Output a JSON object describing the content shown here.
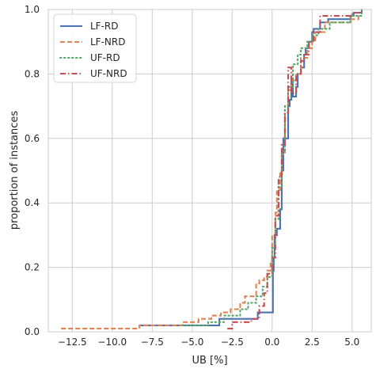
{
  "chart_data": {
    "type": "line",
    "title": "",
    "xlabel": "UB [%]",
    "ylabel": "proportion of instances",
    "xlim": [
      -14.0,
      6.2
    ],
    "ylim": [
      0.0,
      1.0
    ],
    "x_ticks": [
      -12.5,
      -10.0,
      -7.5,
      -5.0,
      -2.5,
      0.0,
      2.5,
      5.0
    ],
    "x_tick_labels": [
      "−12.5",
      "−10.0",
      "−7.5",
      "−5.0",
      "−2.5",
      "0.0",
      "2.5",
      "5.0"
    ],
    "y_ticks": [
      0.0,
      0.2,
      0.4,
      0.6,
      0.8,
      1.0
    ],
    "y_tick_labels": [
      "0.0",
      "0.2",
      "0.4",
      "0.6",
      "0.8",
      "1.0"
    ],
    "grid": true,
    "legend_position": "top-left",
    "step": "post",
    "series": [
      {
        "name": "LF-RD",
        "color": "#4c72b0",
        "dash": "solid",
        "x": [
          -8.3,
          -3.5,
          -3.3,
          -1.0,
          -0.9,
          0.0,
          0.05,
          0.1,
          0.15,
          0.3,
          0.5,
          0.6,
          0.7,
          1.0,
          1.1,
          1.2,
          1.3,
          1.5,
          1.6,
          1.8,
          2.0,
          2.1,
          2.3,
          2.5,
          2.6,
          3.0,
          3.2,
          3.5,
          4.9,
          5.1,
          5.6
        ],
        "y": [
          0.02,
          0.02,
          0.04,
          0.04,
          0.06,
          0.06,
          0.19,
          0.23,
          0.3,
          0.32,
          0.38,
          0.5,
          0.6,
          0.7,
          0.72,
          0.78,
          0.73,
          0.76,
          0.8,
          0.82,
          0.86,
          0.88,
          0.9,
          0.93,
          0.94,
          0.96,
          0.96,
          0.97,
          0.98,
          0.99,
          1.0
        ]
      },
      {
        "name": "LF-NRD",
        "color": "#dd8452",
        "dash": "dashed",
        "x": [
          -13.2,
          -8.3,
          -5.6,
          -4.6,
          -3.8,
          -3.2,
          -2.6,
          -2.0,
          -1.7,
          -1.0,
          -0.8,
          -0.5,
          -0.3,
          -0.1,
          0.0,
          0.2,
          0.3,
          0.5,
          0.6,
          0.8,
          1.0,
          1.2,
          1.5,
          1.8,
          2.2,
          2.5,
          2.7,
          3.3,
          4.9,
          5.4
        ],
        "y": [
          0.01,
          0.02,
          0.03,
          0.04,
          0.05,
          0.06,
          0.07,
          0.09,
          0.11,
          0.15,
          0.16,
          0.17,
          0.19,
          0.22,
          0.3,
          0.37,
          0.44,
          0.5,
          0.55,
          0.68,
          0.75,
          0.78,
          0.8,
          0.85,
          0.88,
          0.9,
          0.93,
          0.96,
          0.97,
          0.99
        ]
      },
      {
        "name": "UF-RD",
        "color": "#55a868",
        "dash": "dotted",
        "x": [
          -5.6,
          -4.0,
          -3.0,
          -2.0,
          -1.5,
          -1.0,
          -0.6,
          -0.3,
          0.0,
          0.2,
          0.4,
          0.6,
          0.8,
          1.0,
          1.3,
          1.6,
          1.8,
          2.2,
          2.5,
          2.9,
          3.6,
          4.9,
          5.6
        ],
        "y": [
          0.02,
          0.03,
          0.05,
          0.07,
          0.09,
          0.11,
          0.14,
          0.17,
          0.26,
          0.35,
          0.45,
          0.56,
          0.7,
          0.76,
          0.83,
          0.86,
          0.88,
          0.9,
          0.92,
          0.94,
          0.96,
          0.98,
          1.0
        ]
      },
      {
        "name": "UF-NRD",
        "color": "#c44e52",
        "dash": "dashdot",
        "x": [
          -2.8,
          -2.5,
          -1.3,
          -0.8,
          -0.5,
          -0.3,
          0.0,
          0.2,
          0.4,
          0.6,
          0.8,
          1.0,
          1.2,
          1.5,
          1.8,
          2.0,
          2.3,
          2.6,
          3.0,
          3.5,
          5.0,
          5.6
        ],
        "y": [
          0.01,
          0.03,
          0.04,
          0.08,
          0.12,
          0.18,
          0.23,
          0.36,
          0.48,
          0.58,
          0.68,
          0.82,
          0.74,
          0.8,
          0.84,
          0.86,
          0.9,
          0.93,
          0.98,
          0.98,
          0.99,
          1.0
        ]
      }
    ]
  }
}
